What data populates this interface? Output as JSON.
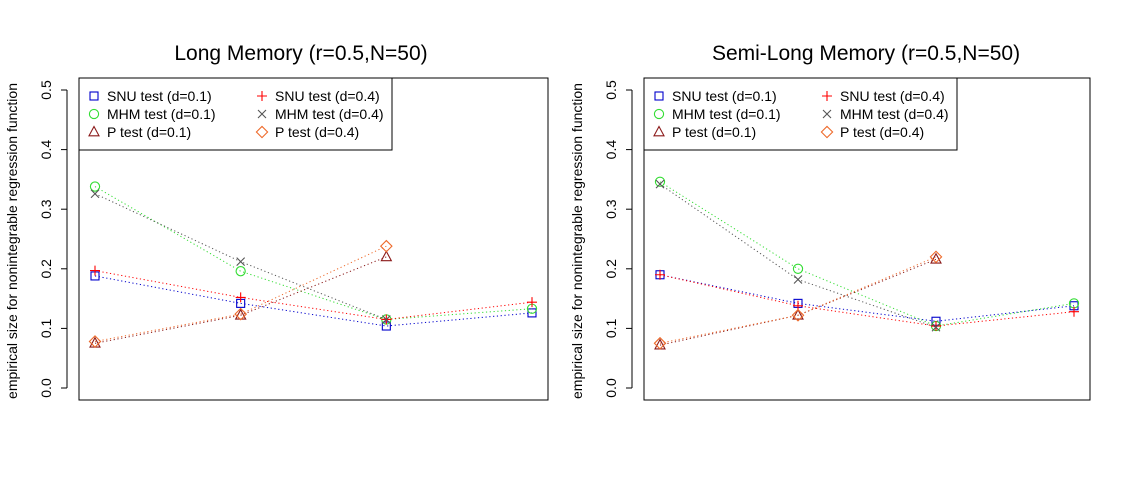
{
  "chart_data": [
    {
      "type": "line",
      "title": "Long Memory (r=0.5,N=50)",
      "xlabel": "",
      "ylabel": "empirical size for nonintegrable regression function",
      "ylim": [
        0,
        0.5
      ],
      "yticks": [
        "0.0",
        "0.1",
        "0.2",
        "0.3",
        "0.4",
        "0.5"
      ],
      "x": [
        1,
        2,
        3,
        4
      ],
      "legend_position": "top-left",
      "grid": false,
      "series": [
        {
          "name": "SNU test (d=0.1)",
          "color": "#0000cc",
          "marker": "square",
          "values": [
            0.188,
            0.142,
            0.104,
            0.126
          ]
        },
        {
          "name": "MHM test (d=0.1)",
          "color": "#33dd33",
          "marker": "circle",
          "values": [
            0.338,
            0.196,
            0.115,
            0.133
          ]
        },
        {
          "name": "P test (d=0.1)",
          "color": "#8b1a1a",
          "marker": "triangle",
          "values": [
            0.075,
            0.122,
            0.22,
            null
          ]
        },
        {
          "name": "SNU test (d=0.4)",
          "color": "#ff0000",
          "marker": "plus",
          "values": [
            0.197,
            0.152,
            0.115,
            0.144
          ]
        },
        {
          "name": "MHM test (d=0.4)",
          "color": "#555555",
          "marker": "cross",
          "values": [
            0.326,
            0.212,
            0.115,
            null
          ]
        },
        {
          "name": "P test (d=0.4)",
          "color": "#ee6a2a",
          "marker": "diamond",
          "values": [
            0.078,
            0.124,
            0.238,
            null
          ]
        }
      ]
    },
    {
      "type": "line",
      "title": "Semi-Long Memory (r=0.5,N=50)",
      "xlabel": "",
      "ylabel": "empirical size for nonintegrable regression function",
      "ylim": [
        0,
        0.5
      ],
      "yticks": [
        "0.0",
        "0.1",
        "0.2",
        "0.3",
        "0.4",
        "0.5"
      ],
      "x": [
        1,
        2,
        3,
        4
      ],
      "legend_position": "top-left",
      "grid": false,
      "series": [
        {
          "name": "SNU test (d=0.1)",
          "color": "#0000cc",
          "marker": "square",
          "values": [
            0.19,
            0.142,
            0.112,
            0.138
          ]
        },
        {
          "name": "MHM test (d=0.1)",
          "color": "#33dd33",
          "marker": "circle",
          "values": [
            0.346,
            0.2,
            0.104,
            0.142
          ]
        },
        {
          "name": "P test (d=0.1)",
          "color": "#8b1a1a",
          "marker": "triangle",
          "values": [
            0.072,
            0.122,
            0.216,
            null
          ]
        },
        {
          "name": "SNU test (d=0.4)",
          "color": "#ff0000",
          "marker": "plus",
          "values": [
            0.19,
            0.138,
            0.104,
            0.128
          ]
        },
        {
          "name": "MHM test (d=0.4)",
          "color": "#555555",
          "marker": "cross",
          "values": [
            0.342,
            0.182,
            0.102,
            null
          ]
        },
        {
          "name": "P test (d=0.4)",
          "color": "#ee6a2a",
          "marker": "diamond",
          "values": [
            0.075,
            0.122,
            0.22,
            null
          ]
        }
      ]
    }
  ]
}
